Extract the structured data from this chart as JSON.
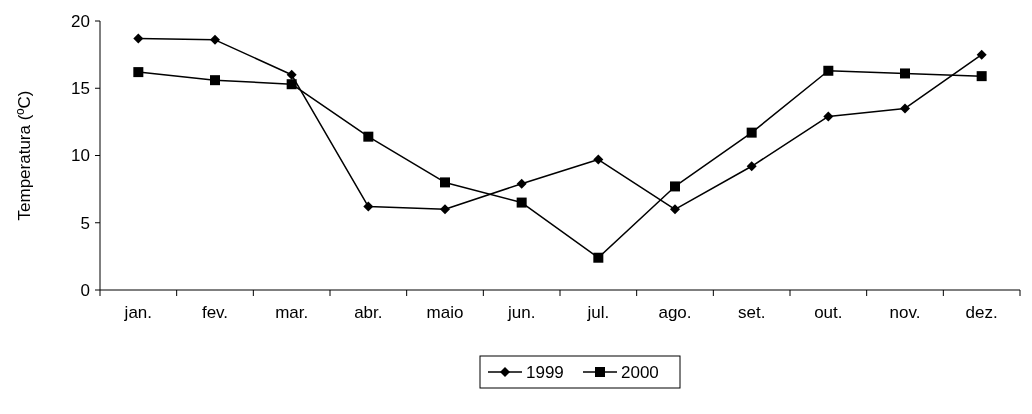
{
  "chart_data": {
    "type": "line",
    "ylabel": "Temperatura (ºC)",
    "categories": [
      "jan.",
      "fev.",
      "mar.",
      "abr.",
      "maio",
      "jun.",
      "jul.",
      "ago.",
      "set.",
      "out.",
      "nov.",
      "dez."
    ],
    "series": [
      {
        "name": "1999",
        "color": "#000000",
        "marker": "diamond",
        "values": [
          18.7,
          18.6,
          16.0,
          6.2,
          6.0,
          7.9,
          9.7,
          6.0,
          9.2,
          12.9,
          13.5,
          17.5
        ]
      },
      {
        "name": "2000",
        "color": "#000000",
        "marker": "square",
        "values": [
          16.2,
          15.6,
          15.3,
          11.4,
          8.0,
          6.5,
          2.4,
          7.7,
          11.7,
          16.3,
          16.1,
          15.9
        ]
      }
    ],
    "ylim": [
      0,
      20
    ],
    "yticks": [
      0,
      5,
      10,
      15,
      20
    ],
    "grid": false,
    "legend": "bottom",
    "line_style": "solid"
  }
}
